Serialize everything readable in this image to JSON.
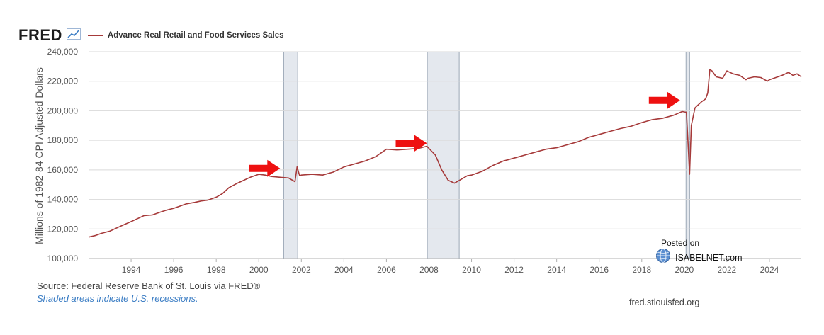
{
  "header": {
    "logo": "FRED",
    "legend_label": "Advance Real Retail and Food Services Sales"
  },
  "footer": {
    "source": "Source: Federal Reserve Bank of St. Louis via FRED®",
    "note": "Shaded areas indicate U.S. recessions.",
    "site": "fred.stlouisfed.org"
  },
  "watermark": {
    "posted_on": "Posted on",
    "name": "ISABELNET.com"
  },
  "colors": {
    "series": "#a63a3a",
    "recession": "#e4e8ee",
    "grid": "#d9d9d9",
    "arrow": "#ee1111"
  },
  "chart_data": {
    "type": "line",
    "title": "",
    "ylabel": "Millions of 1982-84 CPI Adjusted Dollars",
    "xlabel": "",
    "xlim": [
      1992.0,
      2025.5
    ],
    "ylim": [
      100000,
      240000
    ],
    "y_ticks": [
      100000,
      120000,
      140000,
      160000,
      180000,
      200000,
      220000,
      240000
    ],
    "y_tick_labels": [
      "100,000",
      "120,000",
      "140,000",
      "160,000",
      "180,000",
      "200,000",
      "220,000",
      "240,000"
    ],
    "x_ticks": [
      1994,
      1996,
      1998,
      2000,
      2002,
      2004,
      2006,
      2008,
      2010,
      2012,
      2014,
      2016,
      2018,
      2020,
      2022,
      2024
    ],
    "x_tick_labels": [
      "1994",
      "1996",
      "1998",
      "2000",
      "2002",
      "2004",
      "2006",
      "2008",
      "2010",
      "2012",
      "2014",
      "2016",
      "2018",
      "2020",
      "2022",
      "2024"
    ],
    "grid": "horizontal",
    "legend": "top-left",
    "recessions": [
      {
        "start": 2001.17,
        "end": 2001.83
      },
      {
        "start": 2007.92,
        "end": 2009.42
      },
      {
        "start": 2020.08,
        "end": 2020.25
      }
    ],
    "arrows_at": [
      {
        "x": 2001.0,
        "y": 161000
      },
      {
        "x": 2007.9,
        "y": 178000
      },
      {
        "x": 2019.8,
        "y": 207000
      }
    ],
    "series": [
      {
        "name": "Advance Real Retail and Food Services Sales",
        "x": [
          1992.0,
          1992.3,
          1992.6,
          1993.0,
          1993.3,
          1993.6,
          1994.0,
          1994.3,
          1994.6,
          1995.0,
          1995.3,
          1995.6,
          1996.0,
          1996.3,
          1996.6,
          1997.0,
          1997.3,
          1997.6,
          1998.0,
          1998.3,
          1998.6,
          1999.0,
          1999.3,
          1999.6,
          2000.0,
          2000.3,
          2000.6,
          2001.0,
          2001.4,
          2001.7,
          2001.8,
          2001.92,
          2002.0,
          2002.5,
          2003.0,
          2003.5,
          2004.0,
          2004.5,
          2005.0,
          2005.5,
          2006.0,
          2006.5,
          2007.0,
          2007.5,
          2007.9,
          2008.3,
          2008.6,
          2008.9,
          2009.2,
          2009.5,
          2009.8,
          2010.0,
          2010.5,
          2011.0,
          2011.5,
          2012.0,
          2012.5,
          2013.0,
          2013.5,
          2014.0,
          2014.5,
          2015.0,
          2015.5,
          2016.0,
          2016.5,
          2017.0,
          2017.5,
          2018.0,
          2018.5,
          2019.0,
          2019.5,
          2019.9,
          2020.1,
          2020.17,
          2020.25,
          2020.33,
          2020.5,
          2020.8,
          2021.0,
          2021.1,
          2021.2,
          2021.3,
          2021.5,
          2021.8,
          2022.0,
          2022.3,
          2022.6,
          2022.9,
          2023.0,
          2023.3,
          2023.6,
          2023.9,
          2024.0,
          2024.3,
          2024.6,
          2024.9,
          2025.1,
          2025.3,
          2025.5
        ],
        "values": [
          114500,
          115500,
          117000,
          118500,
          120500,
          122500,
          125000,
          127000,
          129000,
          129500,
          131000,
          132500,
          134000,
          135500,
          137000,
          138000,
          139000,
          139500,
          141500,
          144000,
          148000,
          151000,
          153000,
          155000,
          157000,
          156500,
          155500,
          155000,
          154500,
          152000,
          162000,
          156000,
          156500,
          157000,
          156500,
          158500,
          162000,
          164000,
          166000,
          169000,
          174000,
          173500,
          174000,
          174500,
          176000,
          170000,
          160000,
          153000,
          151000,
          153500,
          156000,
          156500,
          159000,
          163000,
          166000,
          168000,
          170000,
          172000,
          174000,
          175000,
          177000,
          179000,
          182000,
          184000,
          186000,
          188000,
          189500,
          192000,
          194000,
          195000,
          197000,
          199500,
          199000,
          180000,
          157000,
          190000,
          202000,
          206000,
          208000,
          212000,
          228000,
          227000,
          223000,
          222000,
          227000,
          225000,
          224000,
          221000,
          222000,
          223000,
          222500,
          220000,
          221000,
          222500,
          224000,
          226000,
          224000,
          225000,
          223000
        ]
      }
    ]
  }
}
